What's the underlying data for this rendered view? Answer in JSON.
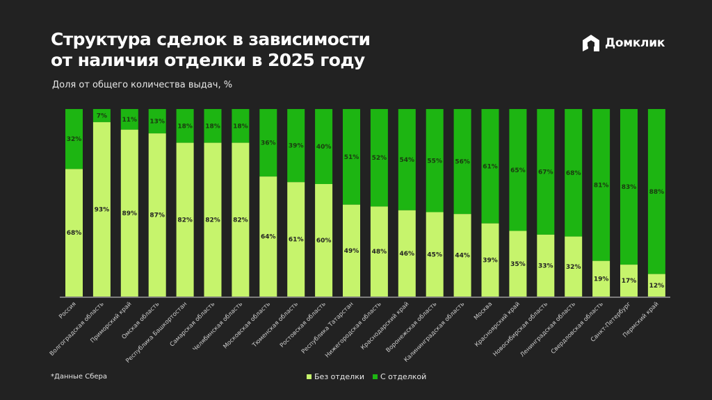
{
  "header": {
    "title_line1": "Структура сделок в зависимости",
    "title_line2": "от наличия отделки в 2025 году",
    "subtitle": "Доля от общего количества выдач, %",
    "logo_text": "Домклик"
  },
  "footnote": "*Данные Сбера",
  "colors": {
    "background": "#222222",
    "without_finish": "#c6f46c",
    "with_finish": "#1db512"
  },
  "chart_data": {
    "type": "bar",
    "stacked": true,
    "percent": true,
    "ylim": [
      0,
      100
    ],
    "grid": false,
    "legend_position": "bottom",
    "categories": [
      "Россия",
      "Волгоградская область",
      "Приморский край",
      "Омская область",
      "Республика Башкортостан",
      "Самарская область",
      "Челябинская область",
      "Московская область",
      "Тюменская область",
      "Ростовская область",
      "Республика Татарстан",
      "Нижегородская область",
      "Краснодарский край",
      "Воронежская область",
      "Калининградская область",
      "Москва",
      "Красноярский край",
      "Новосибирская область",
      "Ленинградская область",
      "Свердловская область",
      "Санкт-Петербург",
      "Пермский край"
    ],
    "series": [
      {
        "name": "Без отделки",
        "values": [
          68,
          93,
          89,
          87,
          82,
          82,
          82,
          64,
          61,
          60,
          49,
          48,
          46,
          45,
          44,
          39,
          35,
          33,
          32,
          19,
          17,
          12
        ]
      },
      {
        "name": "С отделкой",
        "values": [
          32,
          7,
          11,
          13,
          18,
          18,
          18,
          36,
          39,
          40,
          51,
          52,
          54,
          55,
          56,
          61,
          65,
          67,
          68,
          81,
          83,
          88
        ]
      }
    ]
  }
}
